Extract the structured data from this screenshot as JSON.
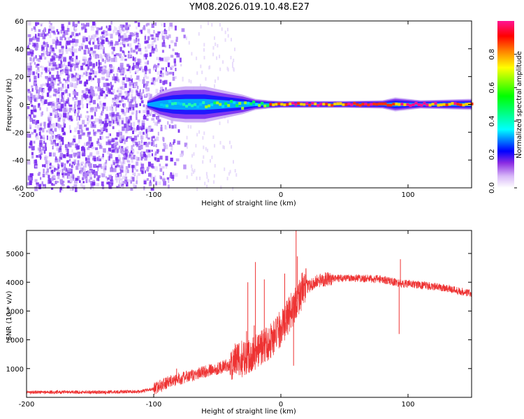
{
  "title": "YM08.2026.019.10.48.E27",
  "colors": {
    "snr_line": "#ee3333",
    "spec_dots": "#7a2cf0"
  },
  "chart_data": [
    {
      "type": "heatmap",
      "name": "spectrogram",
      "xlabel": "Height of straight line (km)",
      "ylabel": "Frequency (Hz)",
      "xlim": [
        -200,
        150
      ],
      "ylim": [
        -60,
        60
      ],
      "xticks": [
        -200,
        -100,
        0,
        100
      ],
      "xtick_labels": [
        "-200",
        "-100",
        "0",
        "100"
      ],
      "yticks": [
        -60,
        -40,
        -20,
        0,
        20,
        40,
        60
      ],
      "ytick_labels": [
        "-60",
        "-40",
        "-20",
        "0",
        "20",
        "40",
        "60"
      ],
      "colorbar": {
        "label": "Normalized spectral amplitude",
        "range": [
          0,
          1
        ],
        "ticks": [
          0.0,
          0.2,
          0.4,
          0.6,
          0.8
        ],
        "tick_labels": [
          "0.0",
          "0.2",
          "0.4",
          "0.6",
          "0.8"
        ]
      },
      "band_halfwidth_hz": [
        [
          -105,
          3
        ],
        [
          -95,
          9
        ],
        [
          -85,
          12
        ],
        [
          -75,
          13
        ],
        [
          -60,
          13
        ],
        [
          -50,
          11
        ],
        [
          -40,
          9
        ],
        [
          -30,
          7
        ],
        [
          -20,
          4
        ],
        [
          -10,
          3
        ],
        [
          0,
          2.5
        ],
        [
          50,
          2.5
        ],
        [
          80,
          3
        ],
        [
          90,
          5
        ],
        [
          100,
          4
        ],
        [
          110,
          3
        ],
        [
          150,
          4
        ]
      ]
    },
    {
      "type": "line",
      "name": "snr",
      "xlabel": "Height of straight line (km)",
      "ylabel": "SNR (10 * v/v)",
      "xlim": [
        -200,
        150
      ],
      "ylim": [
        0,
        5800
      ],
      "xticks": [
        -200,
        -100,
        0,
        100
      ],
      "xtick_labels": [
        "-200",
        "-100",
        "0",
        "100"
      ],
      "yticks": [
        1000,
        2000,
        3000,
        4000,
        5000
      ],
      "ytick_labels": [
        "1000",
        "2000",
        "3000",
        "4000",
        "5000"
      ],
      "series": [
        {
          "name": "SNR",
          "x": [
            -200,
            -150,
            -110,
            -100,
            -90,
            -80,
            -70,
            -60,
            -50,
            -40,
            -30,
            -20,
            -15,
            -10,
            -5,
            0,
            5,
            10,
            15,
            20,
            25,
            30,
            35,
            40,
            50,
            60,
            70,
            80,
            85,
            90,
            95,
            100,
            110,
            120,
            130,
            140,
            150
          ],
          "y": [
            180,
            180,
            200,
            300,
            500,
            650,
            750,
            900,
            1000,
            1150,
            1350,
            1600,
            1750,
            1900,
            2100,
            2400,
            2750,
            3150,
            3600,
            3850,
            3950,
            4050,
            4100,
            4120,
            4150,
            4150,
            4120,
            4100,
            4050,
            4000,
            3950,
            3950,
            3900,
            3850,
            3800,
            3700,
            3600
          ]
        }
      ],
      "spikes": [
        {
          "x": -82,
          "y": 1000
        },
        {
          "x": -40,
          "y": 1150
        },
        {
          "x": -27,
          "y": 2300
        },
        {
          "x": -26,
          "y": 4000
        },
        {
          "x": -21,
          "y": 2500
        },
        {
          "x": -20,
          "y": 4700
        },
        {
          "x": -13,
          "y": 4100
        },
        {
          "x": -9,
          "y": 1700
        },
        {
          "x": 3,
          "y": 4300
        },
        {
          "x": 10,
          "y": 1100
        },
        {
          "x": 12,
          "y": 5800
        },
        {
          "x": 13,
          "y": 4900
        },
        {
          "x": 93,
          "y": 2200
        },
        {
          "x": 94,
          "y": 4800
        }
      ]
    }
  ]
}
